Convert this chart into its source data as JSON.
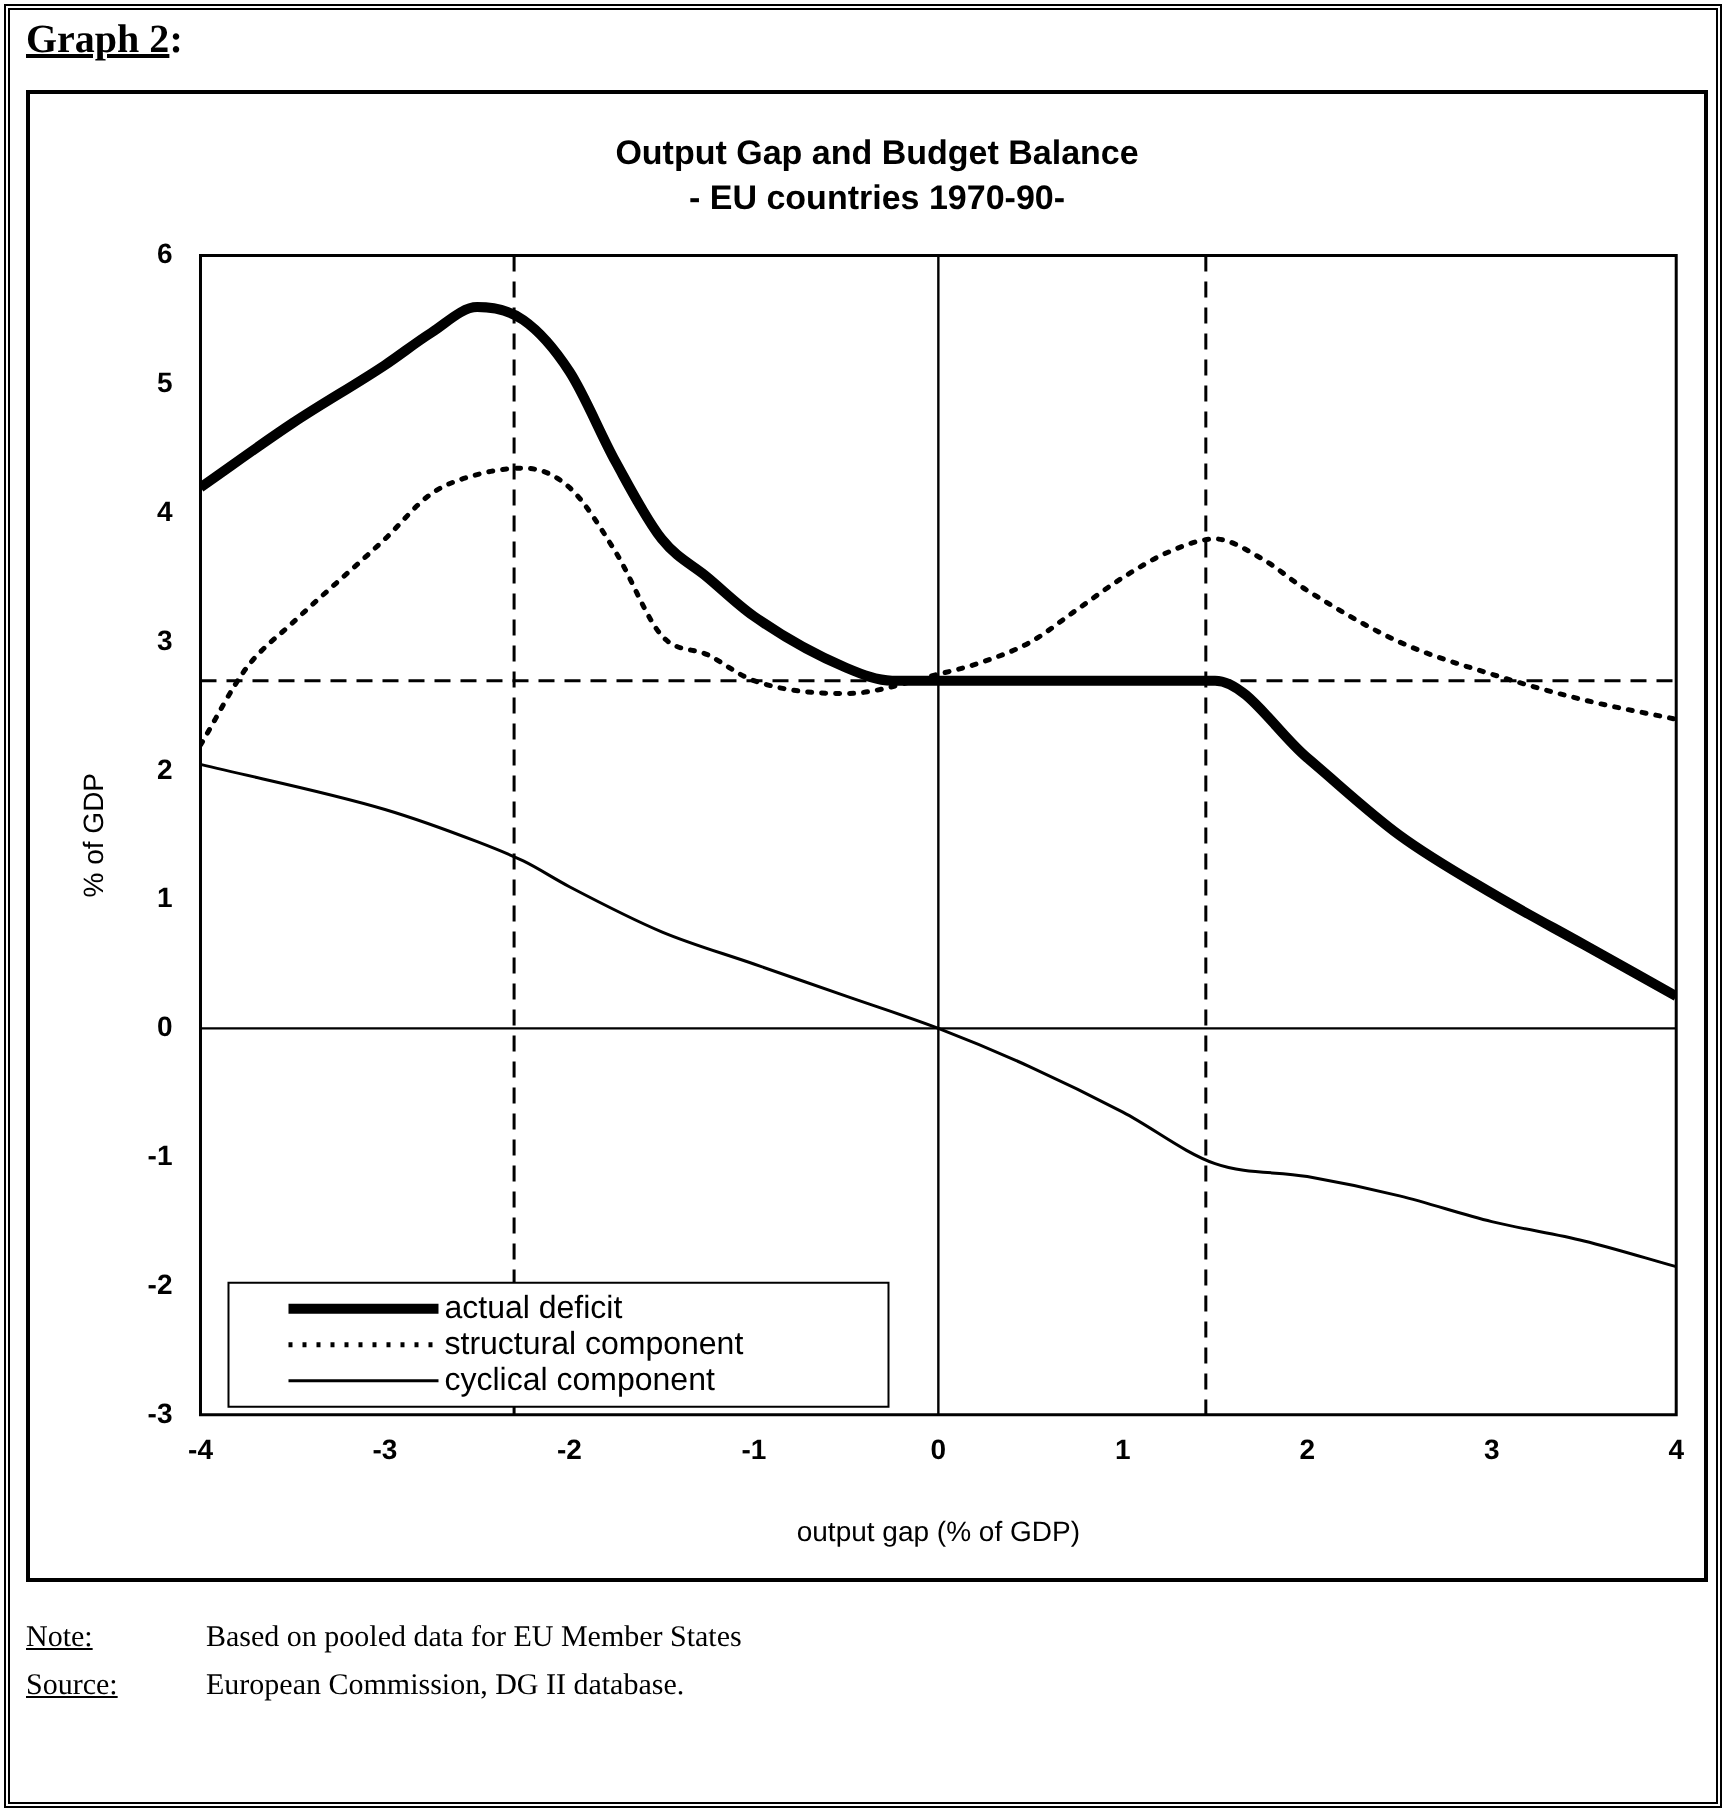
{
  "chart_data": {
    "type": "line",
    "title": "Output Gap and Budget Balance",
    "subtitle": "- EU countries 1970-90-",
    "xlabel": "output gap (% of GDP)",
    "ylabel": "% of GDP",
    "annotations": [
      "Graph 2:",
      "Note:\tBased on pooled data for EU Member States",
      "Source:\tEuropean Commission, DG II database."
    ],
    "xlim": [
      -4,
      4
    ],
    "xticks": [
      -4,
      -3,
      -2,
      -1,
      0,
      1,
      2,
      3,
      4
    ],
    "ylim": [
      -3,
      6
    ],
    "yticks": [
      -3,
      -2,
      -1,
      0,
      1,
      2,
      3,
      4,
      5,
      6
    ],
    "grid": false,
    "legend": "bottom left",
    "marker": "none",
    "ref_lines": [
      {
        "axis": "x",
        "value": 0,
        "line_style": "solid"
      },
      {
        "axis": "y",
        "value": 0,
        "line_style": "solid"
      },
      {
        "axis": "y",
        "value": 2.7,
        "line_style": "dashed"
      },
      {
        "axis": "x",
        "value": -2.3,
        "line_style": "dashed"
      },
      {
        "axis": "x",
        "value": 1.45,
        "line_style": "dashed"
      }
    ],
    "series": [
      {
        "name": "actual deficit",
        "color": "#000000",
        "line_style": "solid",
        "x": [
          -4,
          -3.5,
          -3,
          -2.75,
          -2.5,
          -2.25,
          -2,
          -1.75,
          -1.5,
          -1.25,
          -1,
          -0.5,
          -0.25,
          0,
          1.5,
          2,
          2.5,
          3,
          3.5,
          4
        ],
        "values": [
          4.2,
          4.7,
          5.15,
          5.4,
          5.6,
          5.5,
          5.1,
          4.4,
          3.8,
          3.5,
          3.2,
          2.8,
          2.7,
          2.7,
          2.7,
          2.1,
          1.5,
          1.05,
          0.65,
          0.25
        ]
      },
      {
        "name": "structural component",
        "color": "#000000",
        "line_style": "dotted",
        "x": [
          -4,
          -3.75,
          -3.5,
          -3,
          -2.75,
          -2.5,
          -2.25,
          -2,
          -1.75,
          -1.5,
          -1.25,
          -1,
          -0.5,
          0,
          0.25,
          0.5,
          0.75,
          1,
          1.25,
          1.5,
          1.75,
          2,
          2.5,
          3,
          3.5,
          4
        ],
        "values": [
          2.2,
          2.8,
          3.15,
          3.8,
          4.15,
          4.3,
          4.35,
          4.2,
          3.7,
          3.05,
          2.9,
          2.7,
          2.6,
          2.75,
          2.85,
          3.0,
          3.25,
          3.5,
          3.7,
          3.8,
          3.65,
          3.4,
          3.0,
          2.75,
          2.55,
          2.4
        ]
      },
      {
        "name": "cyclical component",
        "color": "#000000",
        "line_style": "solid",
        "x": [
          -4,
          -3,
          -2.5,
          -2.25,
          -2,
          -1.5,
          -1,
          -0.5,
          0,
          0.5,
          1,
          1.5,
          2,
          2.5,
          3,
          3.5,
          4
        ],
        "values": [
          2.05,
          1.7,
          1.45,
          1.3,
          1.1,
          0.75,
          0.5,
          0.25,
          0,
          -0.3,
          -0.65,
          -1.05,
          -1.15,
          -1.3,
          -1.5,
          -1.65,
          -1.85
        ]
      }
    ]
  }
}
